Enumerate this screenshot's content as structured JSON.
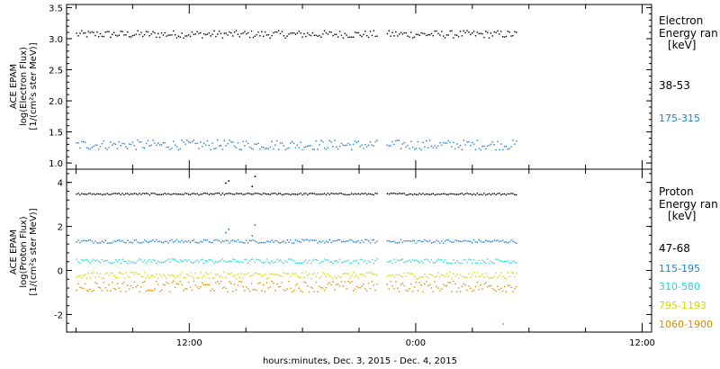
{
  "chart_data": [
    {
      "type": "scatter",
      "ylabel_lines": [
        "ACE EPAM",
        "log(Electron Flux)",
        "[1/(cm²s ster MeV)]"
      ],
      "ylim": [
        0.9,
        3.55
      ],
      "yticks": [
        1.0,
        1.5,
        2.0,
        2.5,
        3.0,
        3.5
      ],
      "ytick_labels": [
        "1.0",
        "1.5",
        "2.0",
        "2.5",
        "3.0",
        "3.5"
      ],
      "legend_title": [
        "Electron",
        "Energy ran",
        "[keV]"
      ],
      "gaps": [
        [
          22.0,
          22.4
        ]
      ],
      "series": [
        {
          "name": "38-53",
          "color": "#000000",
          "mean": 3.08,
          "jitter": 0.06,
          "x_start": 6.0,
          "x_end": 29.3
        },
        {
          "name": "175-315",
          "color": "#1f7fd6",
          "mean": 1.3,
          "jitter": 0.08,
          "x_start": 6.0,
          "x_end": 29.3
        }
      ]
    },
    {
      "type": "scatter",
      "ylabel_lines": [
        "ACE EPAM",
        "log(Proton Flux)",
        "[1/(cm²s ster MeV)]"
      ],
      "ylim": [
        -2.8,
        4.6
      ],
      "yticks": [
        -2,
        0,
        2,
        4
      ],
      "ytick_labels": [
        "-2",
        "0",
        "2",
        "4"
      ],
      "legend_title": [
        "Proton",
        "Energy ran",
        "[keV]"
      ],
      "gaps": [
        [
          22.0,
          22.4
        ]
      ],
      "series": [
        {
          "name": "47-68",
          "color": "#000000",
          "mean": 3.5,
          "jitter": 0.04,
          "x_start": 6.0,
          "x_end": 29.3
        },
        {
          "name": "115-195",
          "color": "#1f7fd6",
          "mean": 1.35,
          "jitter": 0.08,
          "x_start": 6.0,
          "x_end": 29.3
        },
        {
          "name": "310-580",
          "color": "#22d6d6",
          "mean": 0.45,
          "jitter": 0.1,
          "x_start": 6.0,
          "x_end": 29.3
        },
        {
          "name": "795-1193",
          "color": "#d6d600",
          "mean": -0.2,
          "jitter": 0.15,
          "x_start": 6.0,
          "x_end": 29.3
        },
        {
          "name": "1060-1900",
          "color": "#e08a00",
          "mean": -0.7,
          "jitter": 0.25,
          "x_start": 6.0,
          "x_end": 29.3
        }
      ],
      "spikes": [
        {
          "series": "47-68",
          "x": 13.9,
          "y": 4.0
        },
        {
          "series": "47-68",
          "x": 14.05,
          "y": 4.1
        },
        {
          "series": "47-68",
          "x": 15.45,
          "y": 4.3
        },
        {
          "series": "47-68",
          "x": 15.3,
          "y": 3.85
        },
        {
          "series": "115-195",
          "x": 13.9,
          "y": 1.75
        },
        {
          "series": "115-195",
          "x": 14.05,
          "y": 1.9
        },
        {
          "series": "115-195",
          "x": 15.45,
          "y": 2.1
        },
        {
          "series": "115-195",
          "x": 15.3,
          "y": 1.6
        },
        {
          "series": "1060-1900",
          "x": 28.6,
          "y": -2.4
        }
      ]
    }
  ],
  "x_axis": {
    "range_hours": [
      5.5,
      36.5
    ],
    "major_ticks": [
      12,
      24,
      36
    ],
    "tick_labels": [
      "12:00",
      "0:00",
      "12:00"
    ],
    "minor_step": 3,
    "xlabel": "hours:minutes, Dec.  3, 2015 - Dec.  4, 2015"
  }
}
